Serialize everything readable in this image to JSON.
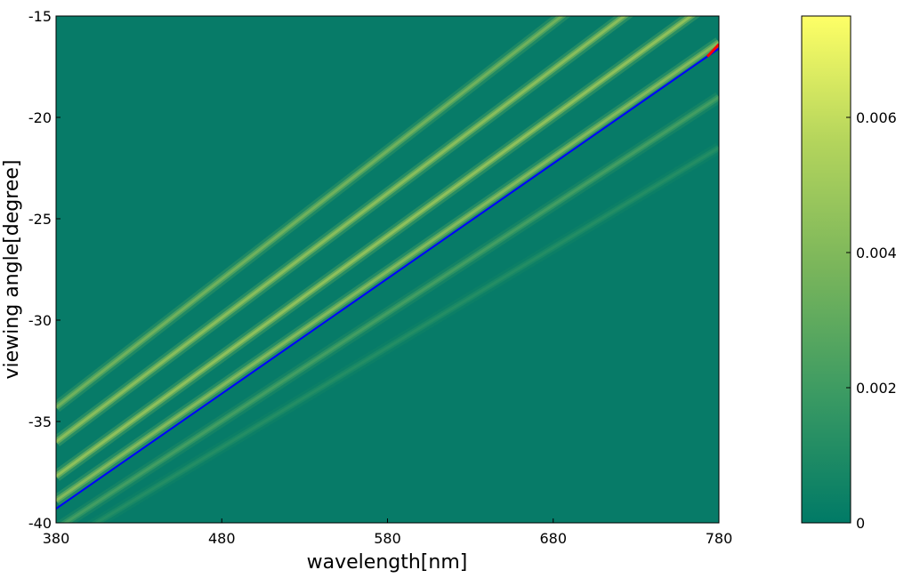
{
  "chart_data": {
    "type": "heatmap",
    "title": "",
    "xlabel": "wavelength[nm]",
    "ylabel": "viewing angle[degree]",
    "xlim": [
      380,
      780
    ],
    "ylim": [
      -40,
      -15
    ],
    "xticks": [
      380,
      480,
      580,
      680,
      780
    ],
    "yticks": [
      -40,
      -35,
      -30,
      -25,
      -20,
      -15
    ],
    "x_tick_labels": [
      "380",
      "480",
      "580",
      "680",
      "780"
    ],
    "y_tick_labels": [
      "-40",
      "-35",
      "-30",
      "-25",
      "-20",
      "-15"
    ],
    "colorbar": {
      "range": [
        0,
        0.0075
      ],
      "ticks": [
        0,
        0.002,
        0.004,
        0.006
      ],
      "tick_labels": [
        "0",
        "0.002",
        "0.004",
        "0.006"
      ],
      "colormap": [
        "#007a66",
        "#3a9a63",
        "#79b55b",
        "#b3d45c",
        "#feff66"
      ]
    },
    "background_color": "#077b68",
    "ridges": [
      {
        "x": [
          380,
          780
        ],
        "y": [
          -38.9,
          -16.3
        ],
        "peak": 0.0042
      },
      {
        "x": [
          380,
          780
        ],
        "y": [
          -37.7,
          -14.0
        ],
        "peak": 0.0046
      },
      {
        "x": [
          380,
          780
        ],
        "y": [
          -36.0,
          -11.5
        ],
        "peak": 0.0044
      },
      {
        "x": [
          380,
          780
        ],
        "y": [
          -34.3,
          -9.0
        ],
        "peak": 0.0036
      },
      {
        "x": [
          380,
          780
        ],
        "y": [
          -40.3,
          -19.0
        ],
        "peak": 0.0022
      },
      {
        "x": [
          380,
          780
        ],
        "y": [
          -41.2,
          -21.5
        ],
        "peak": 0.0012
      }
    ],
    "series": [
      {
        "color": "#0000ff",
        "x": [
          380,
          780
        ],
        "y": [
          -39.3,
          -16.6
        ]
      },
      {
        "color": "#ff0000",
        "x": [
          773,
          780
        ],
        "y": [
          -17.0,
          -16.4
        ]
      }
    ]
  }
}
